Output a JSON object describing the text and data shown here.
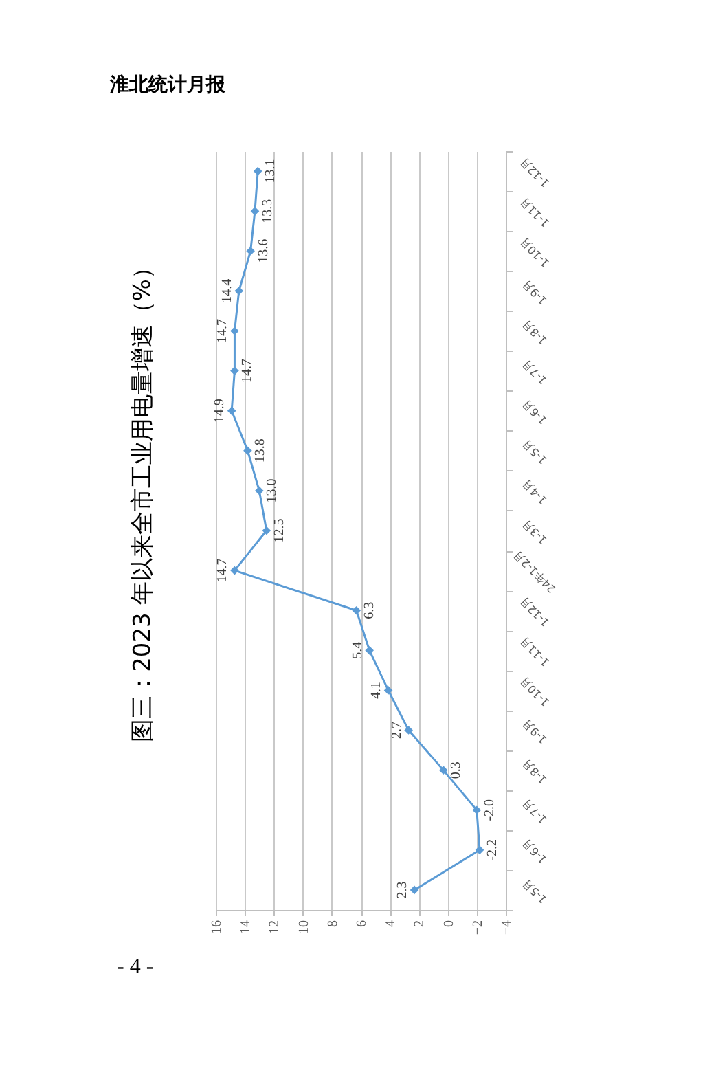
{
  "chart_data": {
    "type": "line",
    "orientation": "horizontal",
    "title": "图三：2023 年以来全市工业用电量增速（%）",
    "categories": [
      "1-12月",
      "1-11月",
      "1-10月",
      "1-9月",
      "1-8月",
      "1-7月",
      "1-6月",
      "1-5月",
      "1-4月",
      "1-3月",
      "24年1-2月",
      "1-12月",
      "1-11月",
      "1-10月",
      "1-9月",
      "1-8月",
      "1-7月",
      "1-6月",
      "1-5月"
    ],
    "values": [
      13.1,
      13.3,
      13.6,
      14.4,
      14.7,
      14.7,
      14.9,
      13.8,
      13.0,
      12.5,
      14.7,
      6.3,
      5.4,
      4.1,
      2.7,
      0.3,
      -2.0,
      -2.2,
      2.3
    ],
    "value_labels": [
      "13.1",
      "13.3",
      "13.6",
      "14.4",
      "14.7",
      "14.7",
      "14.9",
      "13.8",
      "13.0",
      "12.5",
      "14.7",
      "6.3",
      "5.4",
      "4.1",
      "2.7",
      "0.3",
      "-2.0",
      "-2.2",
      "2.3"
    ],
    "color": "#5b9bd5",
    "xlim": [
      16,
      -4
    ],
    "xticks": [
      16,
      14,
      12,
      10,
      8,
      6,
      4,
      2,
      0,
      -2,
      -4
    ],
    "grid": "x",
    "marker": "diamond",
    "line_style": "solid",
    "annotations": [
      "淮北统计月报",
      "- 4 -"
    ]
  }
}
